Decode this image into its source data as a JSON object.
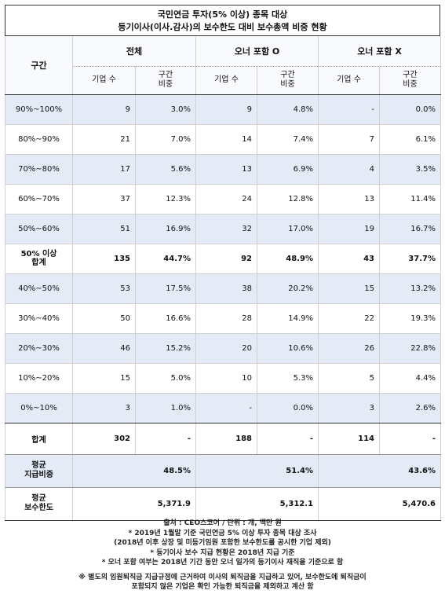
{
  "title": {
    "line1": "국민연금 투자(5% 이상) 종목 대상",
    "line2": "등기이사(이사.감사)의 보수한도 대비 보수총액 비중 현황"
  },
  "header": {
    "range_label": "구간",
    "groups": [
      "전체",
      "오너 포함 O",
      "오너 포함 X"
    ],
    "sub_count": "기업 수",
    "sub_share_1": "구간",
    "sub_share_2": "비중"
  },
  "rows": [
    {
      "label": "90%~100%",
      "label2": "",
      "v": [
        "9",
        "3.0%",
        "9",
        "4.8%",
        "-",
        "0.0%"
      ]
    },
    {
      "label": "80%~90%",
      "label2": "",
      "v": [
        "21",
        "7.0%",
        "14",
        "7.4%",
        "7",
        "6.1%"
      ]
    },
    {
      "label": "70%~80%",
      "label2": "",
      "v": [
        "17",
        "5.6%",
        "13",
        "6.9%",
        "4",
        "3.5%"
      ]
    },
    {
      "label": "60%~70%",
      "label2": "",
      "v": [
        "37",
        "12.3%",
        "24",
        "12.8%",
        "13",
        "11.4%"
      ]
    },
    {
      "label": "50%~60%",
      "label2": "",
      "v": [
        "51",
        "16.9%",
        "32",
        "17.0%",
        "19",
        "16.7%"
      ]
    },
    {
      "label": "50% 이상",
      "label2": "합계",
      "v": [
        "135",
        "44.7%",
        "92",
        "48.9%",
        "43",
        "37.7%"
      ]
    },
    {
      "label": "40%~50%",
      "label2": "",
      "v": [
        "53",
        "17.5%",
        "38",
        "20.2%",
        "15",
        "13.2%"
      ]
    },
    {
      "label": "30%~40%",
      "label2": "",
      "v": [
        "50",
        "16.6%",
        "28",
        "14.9%",
        "22",
        "19.3%"
      ]
    },
    {
      "label": "20%~30%",
      "label2": "",
      "v": [
        "46",
        "15.2%",
        "20",
        "10.6%",
        "26",
        "22.8%"
      ]
    },
    {
      "label": "10%~20%",
      "label2": "",
      "v": [
        "15",
        "5.0%",
        "10",
        "5.3%",
        "5",
        "4.4%"
      ]
    },
    {
      "label": "0%~10%",
      "label2": "",
      "v": [
        "3",
        "1.0%",
        "-",
        "0.0%",
        "3",
        "2.6%"
      ]
    }
  ],
  "total": {
    "label": "합계",
    "v": [
      "302",
      "-",
      "188",
      "-",
      "114",
      "-"
    ]
  },
  "avg_share": {
    "label1": "평균",
    "label2": "지급비중",
    "v": [
      "48.5%",
      "51.4%",
      "43.6%"
    ]
  },
  "avg_cap": {
    "label1": "평균",
    "label2": "보수한도",
    "v": [
      "5,371.9",
      "5,312.1",
      "5,470.6"
    ]
  },
  "notes": {
    "source": "출처 : CEO스코어 / 단위 : 개, 백만 원",
    "n1": "* 2019년 1월말 기준 국민연금 5% 이상 투자 종목 대상 조사",
    "n2": "(2018년 이후 상장 및 미등기임원 포함한 보수한도를 공시한 기업 제외)",
    "n3": "* 등기이사 보수 지급 현황은 2018년 지급 기준",
    "n4": "* 오너 포함 여부는 2018년 기간 동안 오너 일가의 등기이사 재직을 기준으로 함",
    "n5": "※ 별도의 임원퇴직금 지급규정에 근거하여 이사의 퇴직금을 지급하고 있어, 보수한도에 퇴직금이",
    "n6": "포함되지 않은 기업은 확인 가능한 퇴직금을 제외하고 계산 함"
  }
}
